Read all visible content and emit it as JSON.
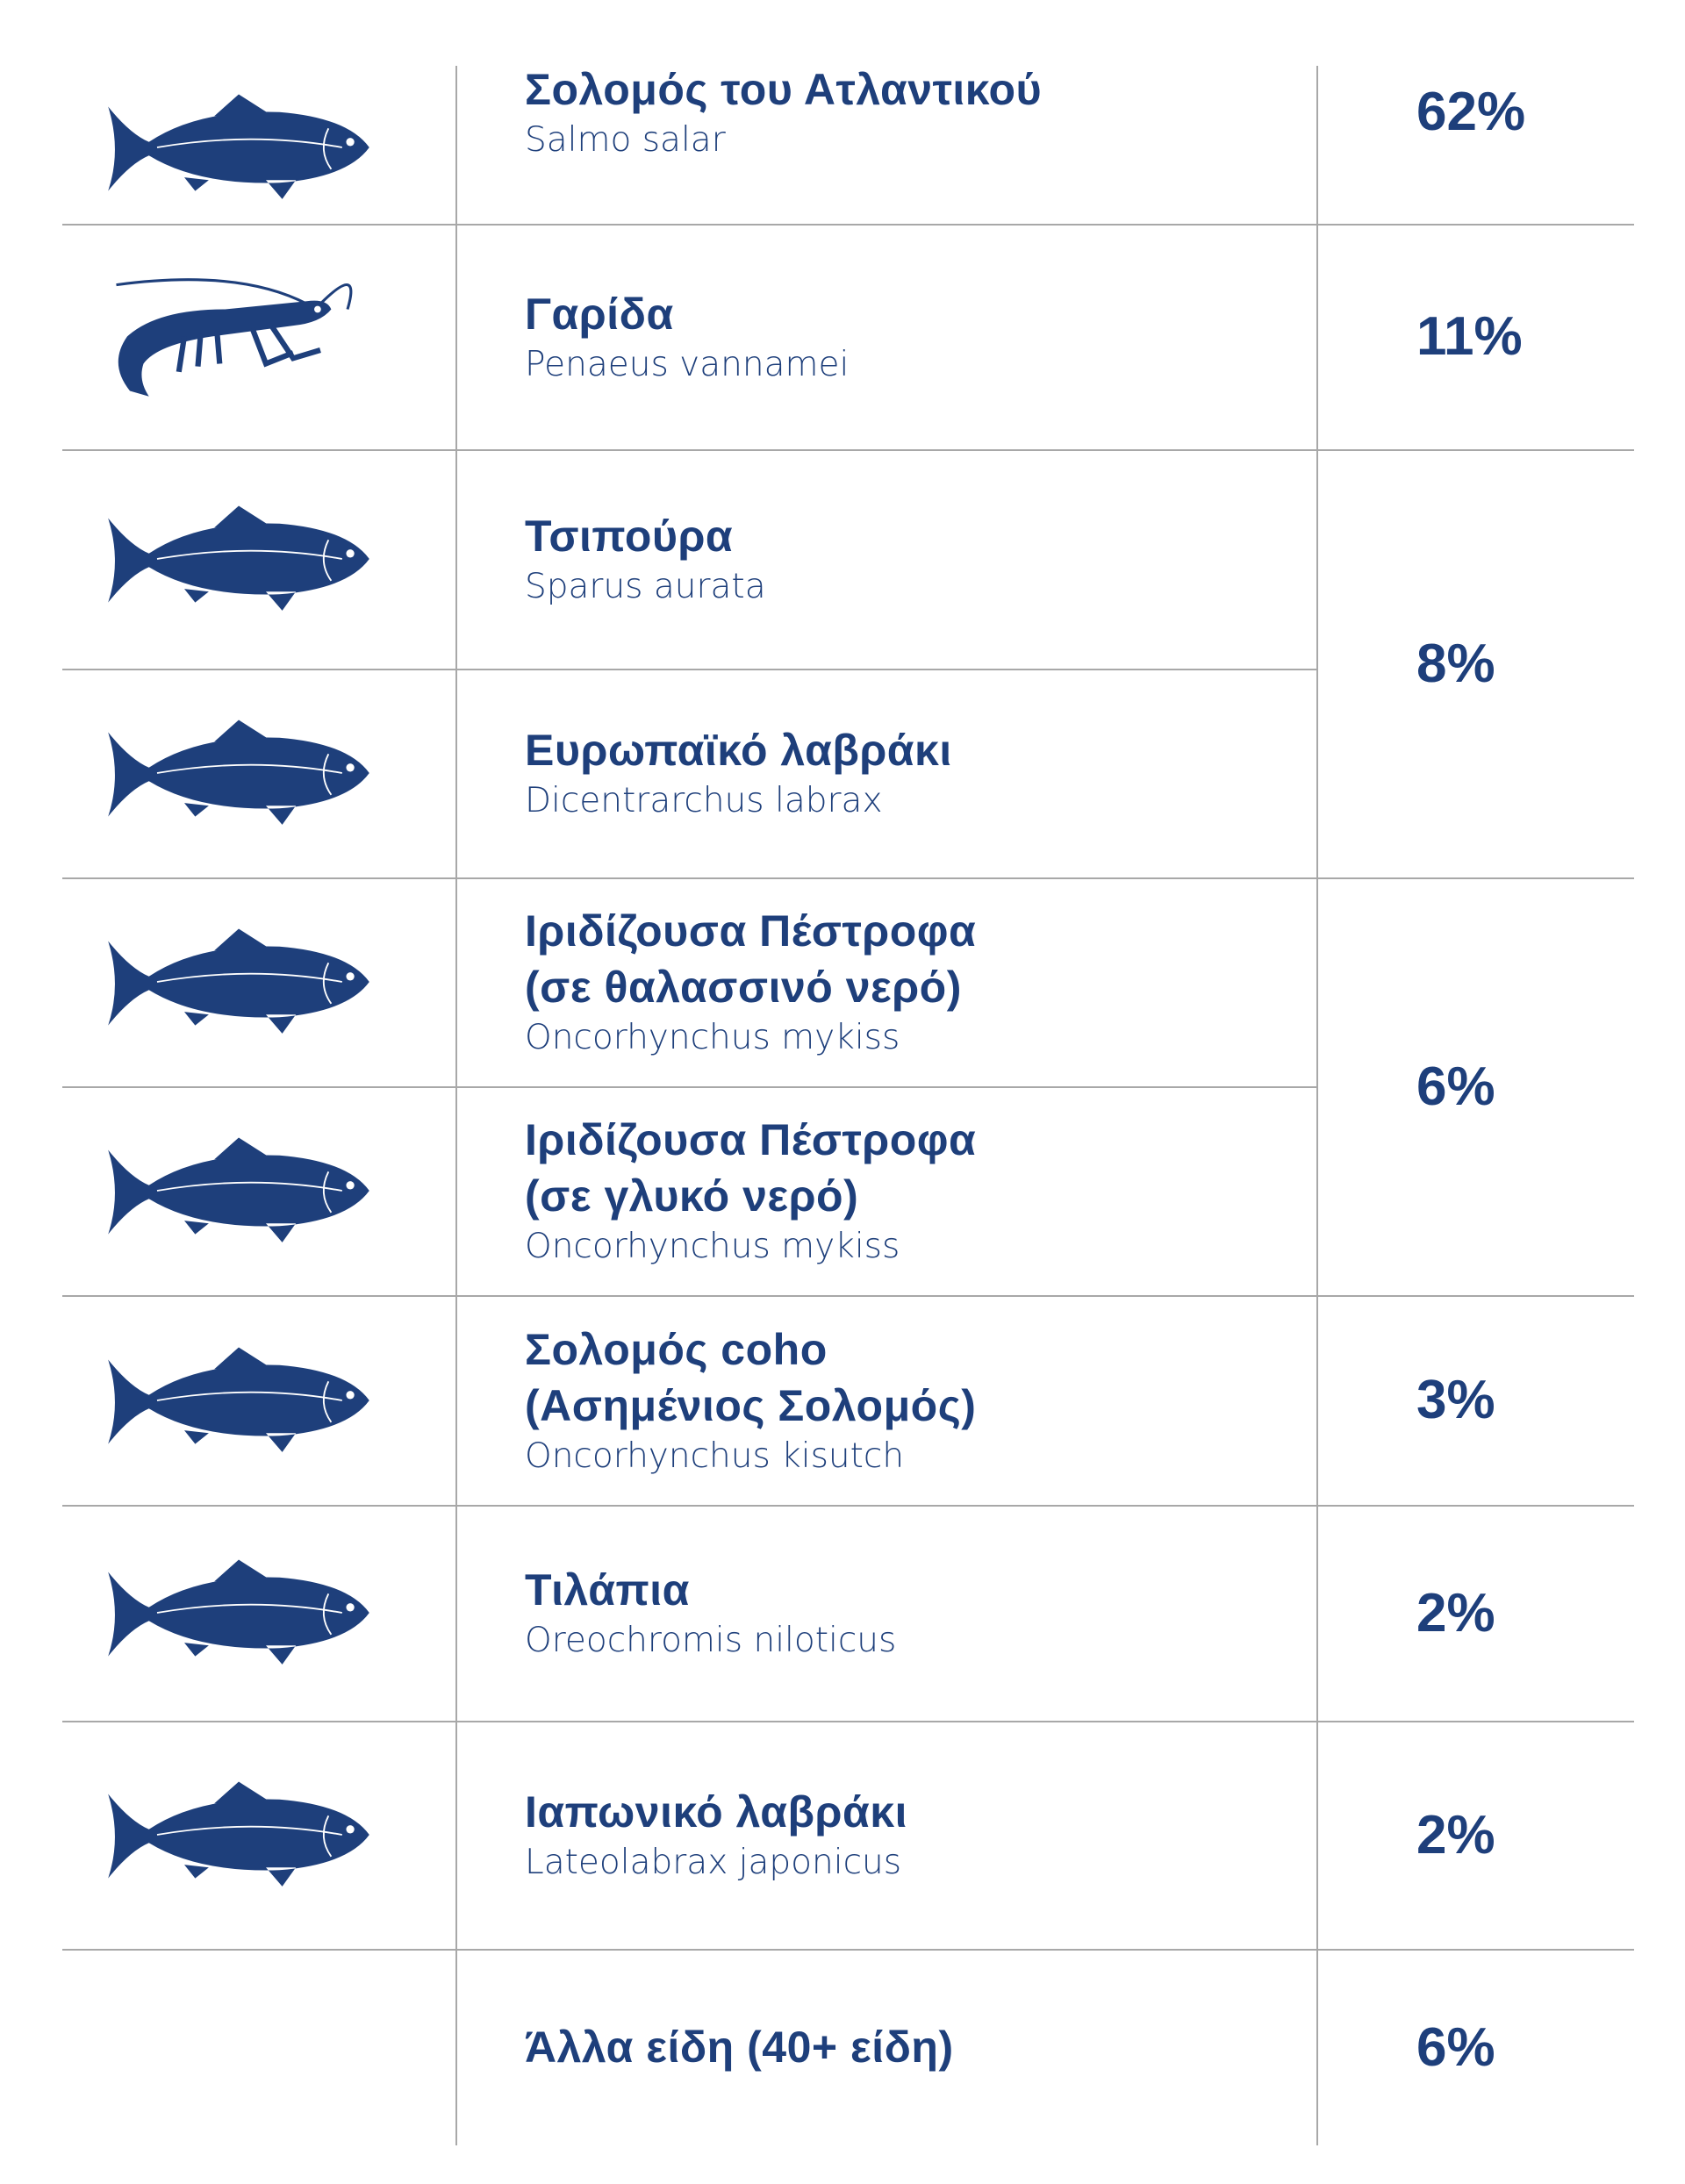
{
  "groups": [
    {
      "share": "62%",
      "species": [
        {
          "name": "Σολομός του Ατλαντικού",
          "latin": "Salmo salar"
        }
      ]
    },
    {
      "share": "11%",
      "species": [
        {
          "name": "Γαρίδα",
          "latin": "Penaeus vannamei"
        }
      ]
    },
    {
      "share": "8%",
      "species": [
        {
          "name": "Τσιπούρα",
          "latin": "Sparus aurata"
        },
        {
          "name": "Ευρωπαϊκό λαβράκι",
          "latin": "Dicentrarchus labrax"
        }
      ]
    },
    {
      "share": "6%",
      "species": [
        {
          "name": "Ιριδίζουσα Πέστροφα\n(σε θαλασσινό νερό)",
          "latin": "Oncorhynchus mykiss"
        },
        {
          "name": "Ιριδίζουσα Πέστροφα\n(σε γλυκό νερό)",
          "latin": "Oncorhynchus mykiss"
        }
      ]
    },
    {
      "share": "3%",
      "species": [
        {
          "name": "Σολομός coho\n(Ασημένιος Σολομός)",
          "latin": "Oncorhynchus kisutch"
        }
      ]
    },
    {
      "share": "2%",
      "species": [
        {
          "name": "Τιλάπια",
          "latin": "Oreochromis niloticus"
        }
      ]
    },
    {
      "share": "2%",
      "species": [
        {
          "name": "Ιαπωνικό λαβράκι",
          "latin": "Lateolabrax japonicus"
        }
      ]
    },
    {
      "share": "6%",
      "species": [
        {
          "name": "Άλλα είδη (40+ είδη)"
        }
      ]
    }
  ]
}
